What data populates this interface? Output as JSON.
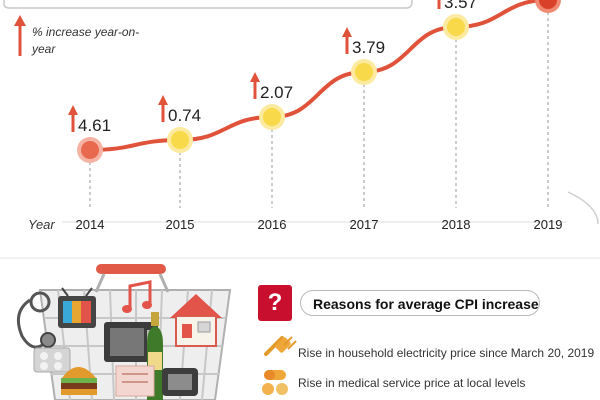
{
  "legend": {
    "label": "% increase year-on-year"
  },
  "chart_data": {
    "type": "line",
    "x": [
      "2014",
      "2015",
      "2016",
      "2017",
      "2018",
      "2019"
    ],
    "values": [
      4.61,
      0.74,
      2.07,
      3.79,
      3.57,
      null
    ],
    "value_labels": [
      "4.61",
      "0.74",
      "2.07",
      "3.79",
      "3.57",
      ""
    ],
    "xlabel": "Year",
    "ylabel": "% increase year-on-year",
    "note": "2019 point partially cropped at top of image; value not visible",
    "colors": {
      "line": "#e0533a",
      "marker": "#f7d949",
      "endpoint": "#d9412b",
      "arrow": "#e0533a"
    }
  },
  "reasons": {
    "badge": "?",
    "title": "Reasons for average CPI increase",
    "items": [
      {
        "icon": "electric-plug-icon",
        "text": "Rise in household electricity price since March 20, 2019"
      },
      {
        "icon": "medicine-pills-icon",
        "text": "Rise in medical service price at local levels"
      }
    ]
  },
  "illustration": {
    "icons": [
      "shopping-basket-icon",
      "stethoscope-icon",
      "television-icon",
      "music-note-icon",
      "house-icon",
      "burger-icon",
      "champagne-bottle-icon",
      "microwave-icon",
      "telephone-icon"
    ]
  }
}
